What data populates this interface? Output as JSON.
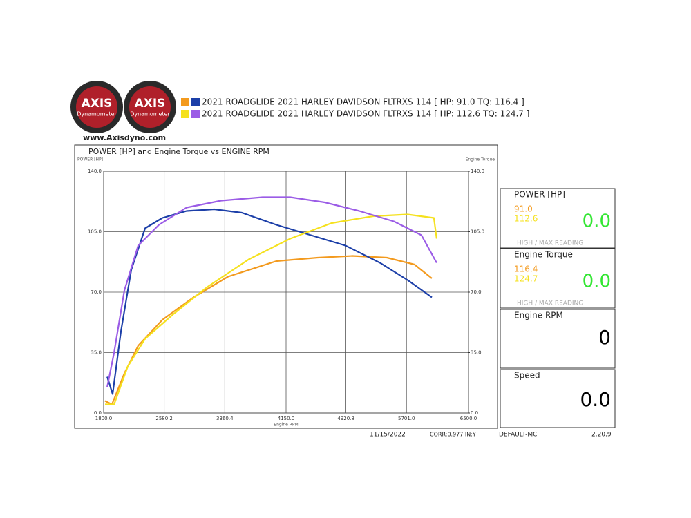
{
  "header": {
    "logo_texts": [
      {
        "brand": "AXIS",
        "sub": "Dynamometer"
      },
      {
        "brand": "AXIS",
        "sub": "Dynamometer"
      }
    ],
    "website": "www.Axisdyno.com"
  },
  "chart_data": {
    "type": "line",
    "title": "POWER [HP] and Engine Torque vs ENGINE RPM",
    "y_label": "POWER [HP]",
    "y2_label": "Engine Torque",
    "x_label": "Engine RPM",
    "legend": [
      {
        "text": "2021 ROADGLIDE 2021 HARLEY DAVIDSON FLTRXS 114 [ HP: 91.0 TQ: 116.4 ]",
        "colors": [
          "#f39a1e",
          "#1c3fa8"
        ]
      },
      {
        "text": "2021 ROADGLIDE 2021 HARLEY DAVIDSON FLTRXS 114 [ HP: 112.6 TQ: 124.7 ]",
        "colors": [
          "#f5e11e",
          "#9b5ce6"
        ]
      }
    ],
    "xlim": [
      1800,
      6500
    ],
    "xticks": [
      {
        "value": 1800,
        "label": "1800.0"
      },
      {
        "value": 2580.2,
        "label": "2580.2"
      },
      {
        "value": 3360.4,
        "label": "3360.4"
      },
      {
        "value": 4150,
        "label": "4150.0"
      },
      {
        "value": 4920.8,
        "label": "4920.8"
      },
      {
        "value": 5701,
        "label": "5701.0"
      },
      {
        "value": 6500,
        "label": "6500.0"
      }
    ],
    "ylim": [
      0,
      140
    ],
    "yticks": [
      {
        "value": 0,
        "label": "0.0"
      },
      {
        "value": 35,
        "label": "35.0"
      },
      {
        "value": 70,
        "label": "70.0"
      },
      {
        "value": 105,
        "label": "105.0"
      },
      {
        "value": 140,
        "label": "140.0"
      }
    ],
    "y2lim": [
      0,
      140
    ],
    "y2ticks": [
      {
        "value": 0,
        "label": "0.0"
      },
      {
        "value": 35,
        "label": "35.0"
      },
      {
        "value": 70,
        "label": "70.0"
      },
      {
        "value": 105,
        "label": "105.0"
      },
      {
        "value": 140,
        "label": "140.0"
      }
    ],
    "grid": true,
    "series": [
      {
        "color": "#f39a1e",
        "axis": "y",
        "x": [
          1818,
          1907,
          2067,
          2245,
          2557,
          2957,
          3402,
          4025,
          4559,
          5004,
          5449,
          5805,
          6028
        ],
        "values": [
          7,
          5,
          23,
          39,
          54,
          67,
          79,
          88,
          90,
          91,
          90,
          86,
          78
        ]
      },
      {
        "color": "#1c3fa8",
        "axis": "y2",
        "x": [
          1845,
          1916,
          2022,
          2156,
          2334,
          2557,
          2868,
          3224,
          3580,
          4025,
          4470,
          4915,
          5360,
          5716,
          6028
        ],
        "values": [
          21,
          11,
          47,
          83,
          107,
          113,
          117,
          118,
          116,
          109,
          103,
          97,
          87,
          77,
          67
        ]
      },
      {
        "color": "#f5e11e",
        "axis": "y",
        "x": [
          1818,
          1934,
          2111,
          2334,
          2690,
          3135,
          3669,
          4203,
          4737,
          5271,
          5716,
          6054,
          6090
        ],
        "values": [
          5,
          5,
          27,
          43,
          57,
          73,
          89,
          101,
          110,
          114,
          115,
          113,
          101
        ]
      },
      {
        "color": "#9b5ce6",
        "axis": "y2",
        "x": [
          1845,
          1934,
          2067,
          2245,
          2512,
          2868,
          3313,
          3847,
          4203,
          4648,
          5093,
          5538,
          5894,
          6090
        ],
        "values": [
          15,
          35,
          71,
          97,
          109,
          119,
          123,
          125,
          125,
          122,
          117,
          111,
          103,
          87
        ]
      }
    ]
  },
  "footer": {
    "date": "11/15/2022",
    "corr": "CORR:0.977 IN:Y",
    "profile": "DEFAULT-MC",
    "version": "2.20.9"
  },
  "panels": [
    {
      "title": "POWER [HP]",
      "readings": [
        "91.0",
        "112.6"
      ],
      "value": "0.0",
      "note": "HIGH / MAX READING"
    },
    {
      "title": "Engine Torque",
      "readings": [
        "116.4",
        "124.7"
      ],
      "value": "0.0",
      "note": "HIGH / MAX READING"
    },
    {
      "title": "Engine RPM",
      "value": "0"
    },
    {
      "title": "Speed",
      "value": "0.0"
    }
  ]
}
